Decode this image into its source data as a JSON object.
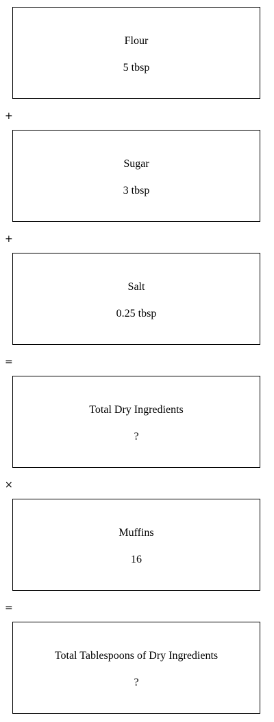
{
  "steps": [
    {
      "label": "Flour",
      "value": "5 tbsp"
    },
    {
      "label": "Sugar",
      "value": "3 tbsp"
    },
    {
      "label": "Salt",
      "value": "0.25 tbsp"
    },
    {
      "label": "Total Dry Ingredients",
      "value": "?"
    },
    {
      "label": "Muffins",
      "value": "16"
    },
    {
      "label": "Total Tablespoons of Dry Ingredients",
      "value": "?"
    }
  ],
  "operators": [
    "+",
    "+",
    "=",
    "×",
    "="
  ]
}
